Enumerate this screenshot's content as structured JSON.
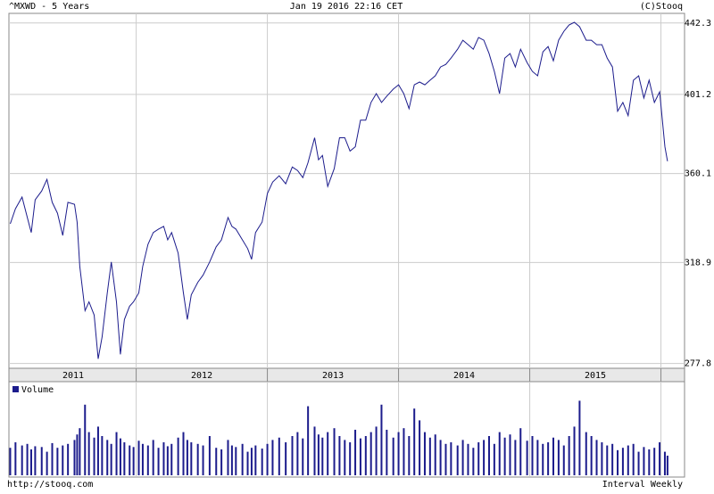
{
  "chart_data": {
    "type": "line",
    "title": "^MXWD - 5 Years",
    "subtitle": "Jan 19 2016 22:16 CET",
    "source": "(C)Stooq",
    "footer_left": "http://stooq.com",
    "footer_right": "Interval Weekly",
    "color": "#1c1c8c",
    "log_scale": true,
    "grid": true,
    "xlim": [
      2011.03,
      2016.18
    ],
    "ylim": [
      276,
      446.5
    ],
    "yticks": [
      277.8,
      318.9,
      360.1,
      401.2,
      442.3
    ],
    "xticks": [
      {
        "value": 2011.52,
        "label": "2011"
      },
      {
        "value": 2012.5,
        "label": "2012"
      },
      {
        "value": 2013.5,
        "label": "2013"
      },
      {
        "value": 2014.5,
        "label": "2014"
      },
      {
        "value": 2015.5,
        "label": "2015"
      }
    ],
    "xgrid": [
      2012,
      2013,
      2014,
      2015,
      2016
    ],
    "x": [
      2011.04,
      2011.08,
      2011.13,
      2011.17,
      2011.2,
      2011.23,
      2011.28,
      2011.32,
      2011.36,
      2011.4,
      2011.44,
      2011.48,
      2011.53,
      2011.55,
      2011.57,
      2011.61,
      2011.64,
      2011.68,
      2011.71,
      2011.74,
      2011.78,
      2011.81,
      2011.85,
      2011.88,
      2011.91,
      2011.95,
      2011.98,
      2012.02,
      2012.05,
      2012.09,
      2012.13,
      2012.17,
      2012.21,
      2012.24,
      2012.27,
      2012.32,
      2012.36,
      2012.39,
      2012.42,
      2012.47,
      2012.51,
      2012.56,
      2012.61,
      2012.65,
      2012.7,
      2012.73,
      2012.76,
      2012.81,
      2012.85,
      2012.88,
      2012.91,
      2012.96,
      2013.0,
      2013.04,
      2013.09,
      2013.14,
      2013.19,
      2013.23,
      2013.27,
      2013.31,
      2013.36,
      2013.39,
      2013.42,
      2013.46,
      2013.51,
      2013.55,
      2013.59,
      2013.63,
      2013.67,
      2013.71,
      2013.75,
      2013.79,
      2013.83,
      2013.87,
      2013.91,
      2013.96,
      2014.0,
      2014.04,
      2014.08,
      2014.12,
      2014.16,
      2014.2,
      2014.24,
      2014.28,
      2014.32,
      2014.36,
      2014.4,
      2014.45,
      2014.49,
      2014.53,
      2014.57,
      2014.61,
      2014.65,
      2014.69,
      2014.73,
      2014.77,
      2014.81,
      2014.85,
      2014.89,
      2014.93,
      2014.98,
      2015.02,
      2015.06,
      2015.1,
      2015.14,
      2015.18,
      2015.22,
      2015.26,
      2015.3,
      2015.34,
      2015.38,
      2015.43,
      2015.47,
      2015.51,
      2015.55,
      2015.59,
      2015.63,
      2015.67,
      2015.71,
      2015.75,
      2015.79,
      2015.83,
      2015.87,
      2015.91,
      2015.95,
      2015.99,
      2016.03,
      2016.05
    ],
    "values": [
      336.2,
      343.2,
      348.7,
      339.1,
      332.2,
      347.4,
      351.6,
      357.2,
      346.2,
      341.1,
      330.9,
      346.2,
      345.3,
      337.0,
      317.2,
      298.6,
      302.2,
      296.8,
      279.6,
      288.1,
      305.9,
      319.1,
      302.2,
      281.3,
      295.0,
      300.4,
      302.2,
      305.9,
      317.2,
      326.9,
      332.2,
      333.8,
      335.0,
      328.9,
      332.2,
      323.0,
      305.9,
      295.0,
      305.1,
      310.4,
      313.4,
      319.1,
      325.8,
      328.9,
      339.1,
      335.0,
      333.8,
      328.9,
      325.0,
      320.3,
      332.2,
      337.0,
      350.4,
      355.9,
      359.0,
      355.1,
      363.3,
      361.6,
      358.1,
      365.5,
      378.1,
      366.9,
      369.1,
      353.8,
      362.5,
      378.1,
      378.1,
      371.3,
      373.5,
      387.3,
      387.3,
      396.8,
      401.6,
      396.8,
      400.2,
      404.1,
      406.5,
      401.6,
      393.5,
      406.5,
      408.0,
      406.5,
      409.0,
      411.5,
      416.5,
      418.0,
      421.6,
      426.7,
      432.0,
      429.4,
      426.7,
      433.6,
      432.0,
      424.2,
      414.0,
      401.6,
      421.6,
      424.2,
      416.5,
      426.7,
      419.0,
      414.0,
      411.5,
      425.2,
      428.3,
      420.0,
      432.0,
      437.3,
      441.1,
      442.7,
      440.0,
      432.0,
      432.0,
      429.4,
      429.4,
      421.6,
      416.5,
      392.1,
      396.8,
      389.7,
      409.0,
      411.5,
      399.2,
      409.0,
      396.8,
      402.6,
      373.5,
      366.2
    ],
    "volume": {
      "name": "Volume",
      "color": "#1c1c8c",
      "ylim": [
        0,
        100
      ],
      "values": [
        35,
        42,
        38,
        40,
        33,
        37,
        36,
        30,
        41,
        35,
        38,
        40,
        45,
        52,
        60,
        90,
        55,
        48,
        62,
        50,
        45,
        40,
        55,
        47,
        42,
        38,
        36,
        44,
        40,
        38,
        45,
        35,
        42,
        37,
        40,
        48,
        55,
        45,
        42,
        40,
        38,
        50,
        35,
        33,
        45,
        38,
        36,
        40,
        30,
        35,
        38,
        34,
        40,
        45,
        48,
        42,
        50,
        55,
        47,
        88,
        62,
        52,
        48,
        55,
        60,
        50,
        45,
        42,
        58,
        47,
        50,
        55,
        62,
        90,
        58,
        48,
        55,
        60,
        50,
        85,
        70,
        55,
        48,
        52,
        45,
        40,
        42,
        38,
        45,
        40,
        35,
        42,
        45,
        50,
        40,
        55,
        48,
        52,
        45,
        60,
        44,
        50,
        45,
        40,
        42,
        48,
        45,
        38,
        50,
        62,
        95,
        55,
        50,
        45,
        42,
        38,
        40,
        32,
        35,
        38,
        40,
        30,
        36,
        33,
        35,
        42,
        30,
        25
      ]
    }
  }
}
